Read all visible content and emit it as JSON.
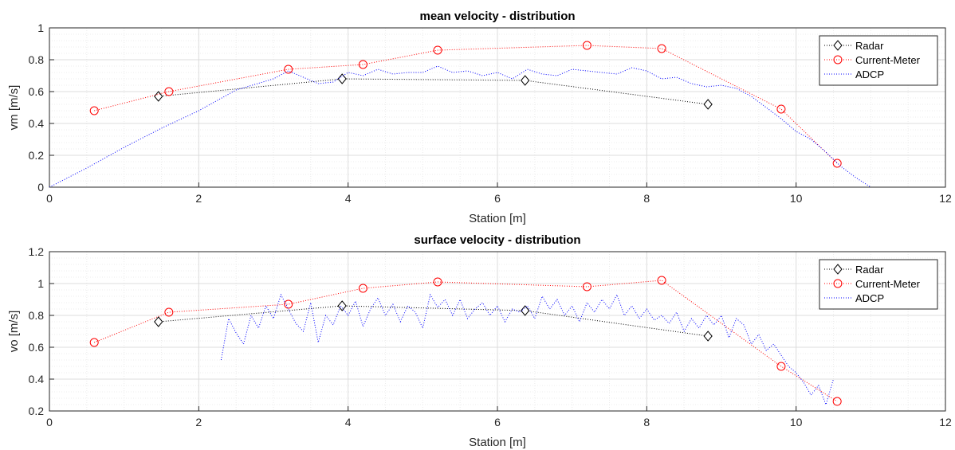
{
  "colors": {
    "radar": "#000000",
    "current_meter": "#ff0000",
    "adcp": "#0000ff",
    "grid_major": "#dcdcdc",
    "grid_minor": "#ececec",
    "axis": "#262626"
  },
  "chart_data": [
    {
      "type": "line",
      "title": "mean velocity - distribution",
      "xlabel": "Station [m]",
      "ylabel": "vm [m/s]",
      "xlim": [
        0,
        12
      ],
      "ylim": [
        0,
        1
      ],
      "xticks": [
        0,
        2,
        4,
        6,
        8,
        10,
        12
      ],
      "yticks": [
        0,
        0.2,
        0.4,
        0.6,
        0.8,
        1
      ],
      "ytick_labels": [
        "0",
        "0.2",
        "0.4",
        "0.6",
        "0.8",
        "1"
      ],
      "xtick_labels": [
        "0",
        "2",
        "4",
        "6",
        "8",
        "10",
        "12"
      ],
      "grid": true,
      "minor_grid": true,
      "legend_position": "top-right",
      "series": [
        {
          "name": "Radar",
          "marker": "diamond",
          "x": [
            1.46,
            3.92,
            6.37,
            8.82
          ],
          "y": [
            0.57,
            0.68,
            0.67,
            0.52
          ]
        },
        {
          "name": "Current-Meter",
          "marker": "circle",
          "x": [
            0.6,
            1.6,
            3.2,
            4.2,
            5.2,
            7.2,
            8.2,
            9.8,
            10.55
          ],
          "y": [
            0.48,
            0.6,
            0.74,
            0.77,
            0.86,
            0.89,
            0.87,
            0.49,
            0.15
          ]
        },
        {
          "name": "ADCP",
          "marker": "none",
          "x": [
            0,
            0.5,
            1.0,
            1.5,
            2.0,
            2.5,
            3.0,
            3.2,
            3.4,
            3.6,
            3.8,
            4.0,
            4.2,
            4.4,
            4.6,
            4.8,
            5.0,
            5.2,
            5.4,
            5.6,
            5.8,
            6.0,
            6.2,
            6.4,
            6.6,
            6.8,
            7.0,
            7.2,
            7.4,
            7.6,
            7.8,
            8.0,
            8.2,
            8.4,
            8.6,
            8.8,
            9.0,
            9.2,
            9.4,
            9.6,
            9.8,
            10.0,
            10.2,
            10.4,
            10.6,
            10.8,
            11.0
          ],
          "y": [
            0.0,
            0.12,
            0.25,
            0.37,
            0.48,
            0.61,
            0.68,
            0.73,
            0.69,
            0.65,
            0.66,
            0.72,
            0.7,
            0.74,
            0.71,
            0.72,
            0.72,
            0.76,
            0.72,
            0.73,
            0.7,
            0.72,
            0.68,
            0.74,
            0.71,
            0.7,
            0.74,
            0.73,
            0.72,
            0.71,
            0.75,
            0.73,
            0.68,
            0.69,
            0.65,
            0.63,
            0.64,
            0.62,
            0.57,
            0.5,
            0.43,
            0.35,
            0.3,
            0.22,
            0.13,
            0.06,
            0.0
          ]
        }
      ]
    },
    {
      "type": "line",
      "title": "surface velocity - distribution",
      "xlabel": "Station [m]",
      "ylabel": "vo [m/s]",
      "xlim": [
        0,
        12
      ],
      "ylim": [
        0.2,
        1.2
      ],
      "xticks": [
        0,
        2,
        4,
        6,
        8,
        10,
        12
      ],
      "yticks": [
        0.2,
        0.4,
        0.6,
        0.8,
        1,
        1.2
      ],
      "ytick_labels": [
        "0.2",
        "0.4",
        "0.6",
        "0.8",
        "1",
        "1.2"
      ],
      "xtick_labels": [
        "0",
        "2",
        "4",
        "6",
        "8",
        "10",
        "12"
      ],
      "grid": true,
      "minor_grid": true,
      "legend_position": "top-right",
      "series": [
        {
          "name": "Radar",
          "marker": "diamond",
          "x": [
            1.46,
            3.92,
            6.37,
            8.82
          ],
          "y": [
            0.76,
            0.86,
            0.83,
            0.67
          ]
        },
        {
          "name": "Current-Meter",
          "marker": "circle",
          "x": [
            0.6,
            1.6,
            3.2,
            4.2,
            5.2,
            7.2,
            8.2,
            9.8,
            10.55
          ],
          "y": [
            0.63,
            0.82,
            0.87,
            0.97,
            1.01,
            0.98,
            1.02,
            0.48,
            0.26
          ]
        },
        {
          "name": "ADCP",
          "marker": "none",
          "x": [
            2.3,
            2.4,
            2.5,
            2.6,
            2.7,
            2.8,
            2.9,
            3.0,
            3.1,
            3.2,
            3.3,
            3.4,
            3.5,
            3.6,
            3.7,
            3.8,
            3.9,
            4.0,
            4.1,
            4.2,
            4.3,
            4.4,
            4.5,
            4.6,
            4.7,
            4.8,
            4.9,
            5.0,
            5.1,
            5.2,
            5.3,
            5.4,
            5.5,
            5.6,
            5.7,
            5.8,
            5.9,
            6.0,
            6.1,
            6.2,
            6.3,
            6.4,
            6.5,
            6.6,
            6.7,
            6.8,
            6.9,
            7.0,
            7.1,
            7.2,
            7.3,
            7.4,
            7.5,
            7.6,
            7.7,
            7.8,
            7.9,
            8.0,
            8.1,
            8.2,
            8.3,
            8.4,
            8.5,
            8.6,
            8.7,
            8.8,
            8.9,
            9.0,
            9.1,
            9.2,
            9.3,
            9.4,
            9.5,
            9.6,
            9.7,
            9.8,
            9.9,
            10.0,
            10.1,
            10.2,
            10.3,
            10.4,
            10.5
          ],
          "y": [
            0.52,
            0.78,
            0.69,
            0.62,
            0.8,
            0.72,
            0.86,
            0.78,
            0.93,
            0.84,
            0.75,
            0.7,
            0.88,
            0.63,
            0.8,
            0.74,
            0.86,
            0.8,
            0.89,
            0.73,
            0.84,
            0.91,
            0.8,
            0.87,
            0.76,
            0.86,
            0.82,
            0.72,
            0.93,
            0.85,
            0.9,
            0.8,
            0.9,
            0.78,
            0.84,
            0.88,
            0.8,
            0.86,
            0.76,
            0.84,
            0.82,
            0.86,
            0.78,
            0.92,
            0.84,
            0.9,
            0.8,
            0.86,
            0.76,
            0.88,
            0.82,
            0.9,
            0.84,
            0.93,
            0.8,
            0.86,
            0.78,
            0.84,
            0.77,
            0.8,
            0.75,
            0.82,
            0.7,
            0.78,
            0.72,
            0.8,
            0.74,
            0.8,
            0.66,
            0.78,
            0.74,
            0.62,
            0.68,
            0.58,
            0.62,
            0.55,
            0.48,
            0.44,
            0.38,
            0.3,
            0.36,
            0.24,
            0.4
          ]
        }
      ]
    }
  ]
}
